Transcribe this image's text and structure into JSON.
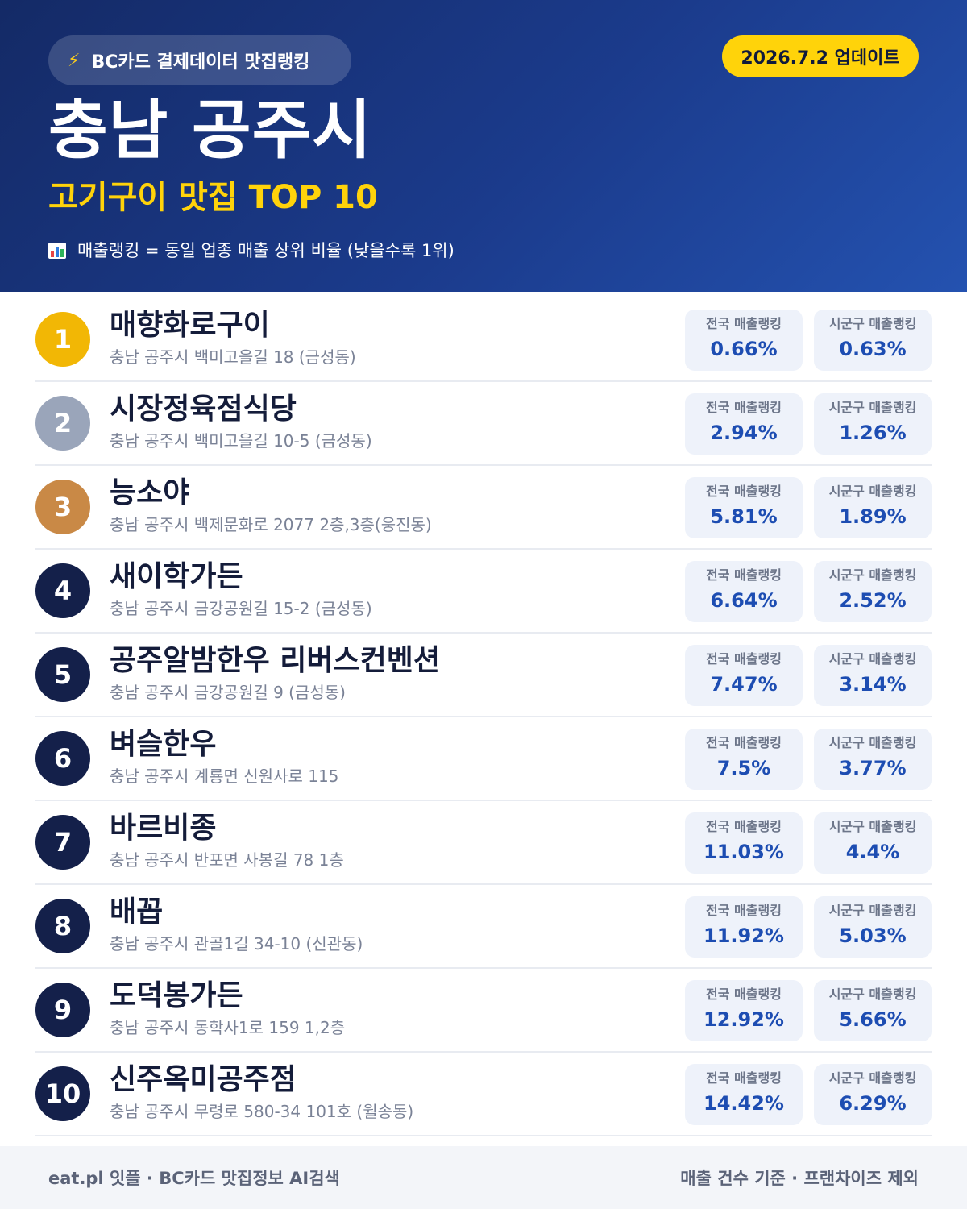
{
  "header": {
    "brand_icon": "lightning-icon",
    "brand": "BC카드 결제데이터 맛집랭킹",
    "update": "2026.7.2 업데이트",
    "title": "충남 공주시",
    "subtitle": "고기구이 맛집 TOP 10",
    "note_icon": "bar-chart-icon",
    "note": "매출랭킹 = 동일 업종 매출 상위 비율 (낮을수록 1위)"
  },
  "colors": {
    "header_bg": "#1b3b8c",
    "accent_yellow": "#ffd30a",
    "gold": "#f2b705",
    "silver": "#9aa5ba",
    "bronze": "#c98946",
    "navy": "#14204a",
    "value_blue": "#1d4db2"
  },
  "labels": {
    "national": "전국 매출랭킹",
    "local": "시군구 매출랭킹"
  },
  "items": [
    {
      "rank": "1",
      "name": "매향화로구이",
      "address": "충남 공주시 백미고을길 18 (금성동)",
      "national": "0.66%",
      "local": "0.63%"
    },
    {
      "rank": "2",
      "name": "시장정육점식당",
      "address": "충남 공주시 백미고을길 10-5 (금성동)",
      "national": "2.94%",
      "local": "1.26%"
    },
    {
      "rank": "3",
      "name": "능소야",
      "address": "충남 공주시 백제문화로 2077 2층,3층(웅진동)",
      "national": "5.81%",
      "local": "1.89%"
    },
    {
      "rank": "4",
      "name": "새이학가든",
      "address": "충남 공주시 금강공원길 15-2 (금성동)",
      "national": "6.64%",
      "local": "2.52%"
    },
    {
      "rank": "5",
      "name": "공주알밤한우 리버스컨벤션",
      "address": "충남 공주시 금강공원길 9 (금성동)",
      "national": "7.47%",
      "local": "3.14%"
    },
    {
      "rank": "6",
      "name": "벼슬한우",
      "address": "충남 공주시 계룡면 신원사로 115",
      "national": "7.5%",
      "local": "3.77%"
    },
    {
      "rank": "7",
      "name": "바르비종",
      "address": "충남 공주시 반포면 사봉길 78 1층",
      "national": "11.03%",
      "local": "4.4%"
    },
    {
      "rank": "8",
      "name": "배꼽",
      "address": "충남 공주시 관골1길 34-10 (신관동)",
      "national": "11.92%",
      "local": "5.03%"
    },
    {
      "rank": "9",
      "name": "도덕봉가든",
      "address": "충남 공주시 동학사1로 159 1,2층",
      "national": "12.92%",
      "local": "5.66%"
    },
    {
      "rank": "10",
      "name": "신주옥미공주점",
      "address": "충남 공주시 무령로 580-34 101호 (월송동)",
      "national": "14.42%",
      "local": "6.29%"
    }
  ],
  "footer": {
    "left": "eat.pl 잇플 · BC카드 맛집정보 AI검색",
    "right": "매출 건수 기준 · 프랜차이즈 제외"
  }
}
